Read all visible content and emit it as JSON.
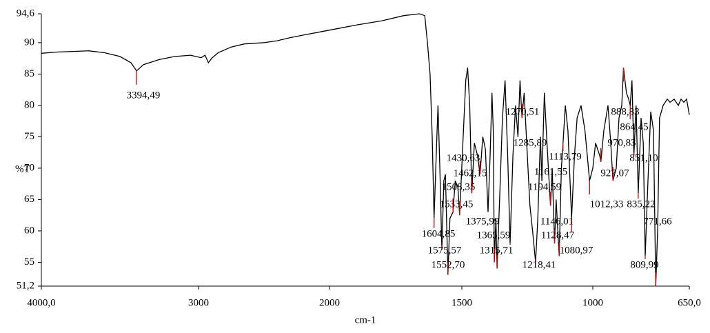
{
  "chart_data": {
    "type": "line",
    "x_label": "cm-1",
    "y_label": "%T",
    "color": "#000000",
    "peak_color": "#e00000",
    "xlim": [
      4000,
      650
    ],
    "xticks": [
      {
        "value": 4000,
        "label": "4000,0"
      },
      3000,
      2000,
      1500,
      1000,
      {
        "value": 650,
        "label": "650,0"
      }
    ],
    "ylim": [
      51.2,
      94.6
    ],
    "yticks": [
      {
        "value": 94.6,
        "label": "94,6"
      },
      90,
      85,
      80,
      75,
      70,
      65,
      60,
      55,
      {
        "value": 51.2,
        "label": "51,2"
      }
    ],
    "x": [
      4000,
      3900,
      3800,
      3700,
      3600,
      3500,
      3430,
      3394.49,
      3350,
      3250,
      3150,
      3050,
      2980,
      2950,
      2925,
      2900,
      2850,
      2750,
      2650,
      2500,
      2400,
      2300,
      2200,
      2100,
      2000,
      1900,
      1800,
      1720,
      1660,
      1640,
      1630,
      1620,
      1612,
      1604.85,
      1597,
      1590,
      1583,
      1575.57,
      1568,
      1562,
      1552.7,
      1545,
      1533.45,
      1525,
      1515,
      1508.35,
      1495,
      1485,
      1478,
      1470,
      1462.15,
      1452,
      1440,
      1430.63,
      1420,
      1410,
      1400,
      1392,
      1385,
      1380,
      1375.99,
      1370,
      1365.59,
      1355,
      1345,
      1335,
      1325,
      1315.71,
      1305,
      1295,
      1285.89,
      1278,
      1270.51,
      1262,
      1250,
      1240,
      1230,
      1218.41,
      1210,
      1200,
      1194.59,
      1185,
      1175,
      1161.55,
      1155,
      1146.01,
      1140,
      1128.47,
      1120,
      1113.79,
      1105,
      1095,
      1080.97,
      1070,
      1060,
      1045,
      1030,
      1012.33,
      1000,
      990,
      975,
      970.83,
      960,
      945,
      935,
      927.07,
      915,
      905,
      895,
      888.83,
      878,
      870,
      864.45,
      858,
      851.1,
      843,
      835.22,
      825,
      817,
      809.99,
      800,
      790,
      780,
      771.66,
      765,
      758,
      745,
      730,
      720,
      705,
      690,
      680,
      670,
      660,
      650
    ],
    "values": [
      88.3,
      88.5,
      88.6,
      88.7,
      88.4,
      87.8,
      86.8,
      85.5,
      86.5,
      87.3,
      87.8,
      88,
      87.6,
      88,
      86.8,
      87.5,
      88.4,
      89.3,
      89.8,
      90,
      90.3,
      90.8,
      91.2,
      91.6,
      92,
      92.8,
      93.5,
      94.3,
      94.6,
      94.3,
      90,
      85,
      75,
      62,
      72,
      80,
      70,
      57,
      68,
      69,
      53,
      62,
      63,
      68,
      67,
      62.5,
      75,
      84,
      86,
      80,
      66,
      74,
      72,
      69,
      75,
      73,
      63,
      72,
      82,
      76,
      55,
      62,
      54,
      66,
      78,
      84,
      72,
      58,
      72,
      80,
      75,
      84,
      78,
      82,
      72,
      64,
      60,
      55,
      62,
      75,
      68,
      82,
      74,
      64,
      70,
      58,
      65,
      56,
      70,
      74,
      80,
      76,
      62,
      72,
      78,
      80,
      76,
      68,
      70,
      74,
      72,
      71,
      76,
      80,
      74,
      68,
      70,
      78,
      80,
      86,
      82,
      81,
      80,
      84,
      72,
      80,
      66,
      78,
      74,
      56,
      68,
      79,
      76,
      51.2,
      60,
      78,
      80,
      81,
      80.5,
      81,
      80,
      81,
      80.5,
      81,
      78.5
    ],
    "peaks": [
      {
        "value": 3394.49,
        "label": "3394,49"
      },
      {
        "value": 1604.85,
        "label": "1604,85"
      },
      {
        "value": 1575.57,
        "label": "1575,57"
      },
      {
        "value": 1552.7,
        "label": "1552,70"
      },
      {
        "value": 1533.45,
        "label": "1533,45"
      },
      {
        "value": 1508.35,
        "label": "1508,35"
      },
      {
        "value": 1462.15,
        "label": "1462,15"
      },
      {
        "value": 1430.63,
        "label": "1430,63"
      },
      {
        "value": 1375.99,
        "label": "1375,99"
      },
      {
        "value": 1365.59,
        "label": "1365,59"
      },
      {
        "value": 1315.71,
        "label": "1315,71"
      },
      {
        "value": 1285.89,
        "label": "1285,89"
      },
      {
        "value": 1270.51,
        "label": "1270,51"
      },
      {
        "value": 1218.41,
        "label": "1218,41"
      },
      {
        "value": 1194.59,
        "label": "1194,59"
      },
      {
        "value": 1161.55,
        "label": "1161,55"
      },
      {
        "value": 1146.01,
        "label": "1146,01"
      },
      {
        "value": 1128.47,
        "label": "1128,47"
      },
      {
        "value": 1113.79,
        "label": "1113,79"
      },
      {
        "value": 1080.97,
        "label": "1080,97"
      },
      {
        "value": 1012.33,
        "label": "1012,33"
      },
      {
        "value": 970.83,
        "label": "970,83"
      },
      {
        "value": 927.07,
        "label": "927,07"
      },
      {
        "value": 888.83,
        "label": "888,83"
      },
      {
        "value": 864.45,
        "label": "864,45"
      },
      {
        "value": 851.1,
        "label": "851,10"
      },
      {
        "value": 835.22,
        "label": "835,22"
      },
      {
        "value": 809.99,
        "label": "809,99"
      },
      {
        "value": 771.66,
        "label": "771,66"
      }
    ]
  }
}
